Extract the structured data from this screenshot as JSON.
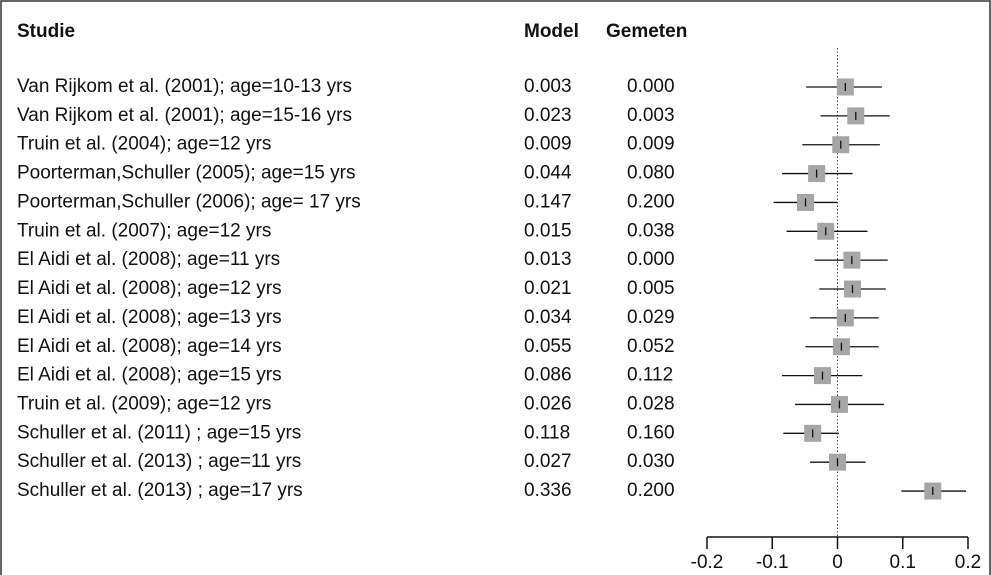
{
  "chart_data": {
    "type": "forest",
    "columns": [
      "Studie",
      "Model",
      "Gemeten"
    ],
    "categories": [
      "Van Rijkom et al. (2001); age=10-13 yrs",
      "Van Rijkom et al. (2001); age=15-16 yrs",
      "Truin et al. (2004); age=12 yrs",
      "Poorterman,Schuller (2005); age=15 yrs",
      "Poorterman,Schuller (2006); age= 17 yrs",
      "Truin et al. (2007); age=12 yrs",
      "El Aidi et al. (2008); age=11 yrs",
      "El Aidi et al. (2008); age=12  yrs",
      "El Aidi et al. (2008); age=13  yrs",
      "El Aidi et al. (2008); age=14  yrs",
      "El Aidi et al. (2008); age=15  yrs",
      "Truin et al. (2009); age=12  yrs",
      "Schuller et al. (2011) ; age=15 yrs",
      "Schuller et al. (2013) ; age=11 yrs",
      "Schuller et al. (2013) ; age=17 yrs"
    ],
    "model": [
      "0.003",
      "0.023",
      "0.009",
      "0.044",
      "0.147",
      "0.015",
      "0.013",
      "0.021",
      "0.034",
      "0.055",
      "0.086",
      "0.026",
      "0.118",
      "0.027",
      "0.336"
    ],
    "gemeten": [
      "0.000",
      "0.003",
      "0.009",
      "0.080",
      "0.200",
      "0.038",
      "0.000",
      "0.005",
      "0.029",
      "0.052",
      "0.112",
      "0.028",
      "0.160",
      "0.030",
      "0.200"
    ],
    "estimates": [
      0.012,
      0.028,
      0.005,
      -0.032,
      -0.049,
      -0.018,
      0.022,
      0.023,
      0.012,
      0.006,
      -0.023,
      0.003,
      -0.038,
      0,
      0.146
    ],
    "lower": [
      -0.048,
      -0.026,
      -0.054,
      -0.085,
      -0.098,
      -0.078,
      -0.035,
      -0.028,
      -0.042,
      -0.049,
      -0.085,
      -0.065,
      -0.083,
      -0.042,
      0.098
    ],
    "upper": [
      0.068,
      0.08,
      0.065,
      0.023,
      0,
      0.046,
      0.077,
      0.074,
      0.063,
      0.063,
      0.038,
      0.071,
      0.002,
      0.043,
      0.197
    ],
    "color": "#a6a6a6",
    "xlim": [
      -0.2,
      0.2
    ],
    "xticks": [
      -0.2,
      -0.1,
      0,
      0.1,
      0.2
    ]
  }
}
